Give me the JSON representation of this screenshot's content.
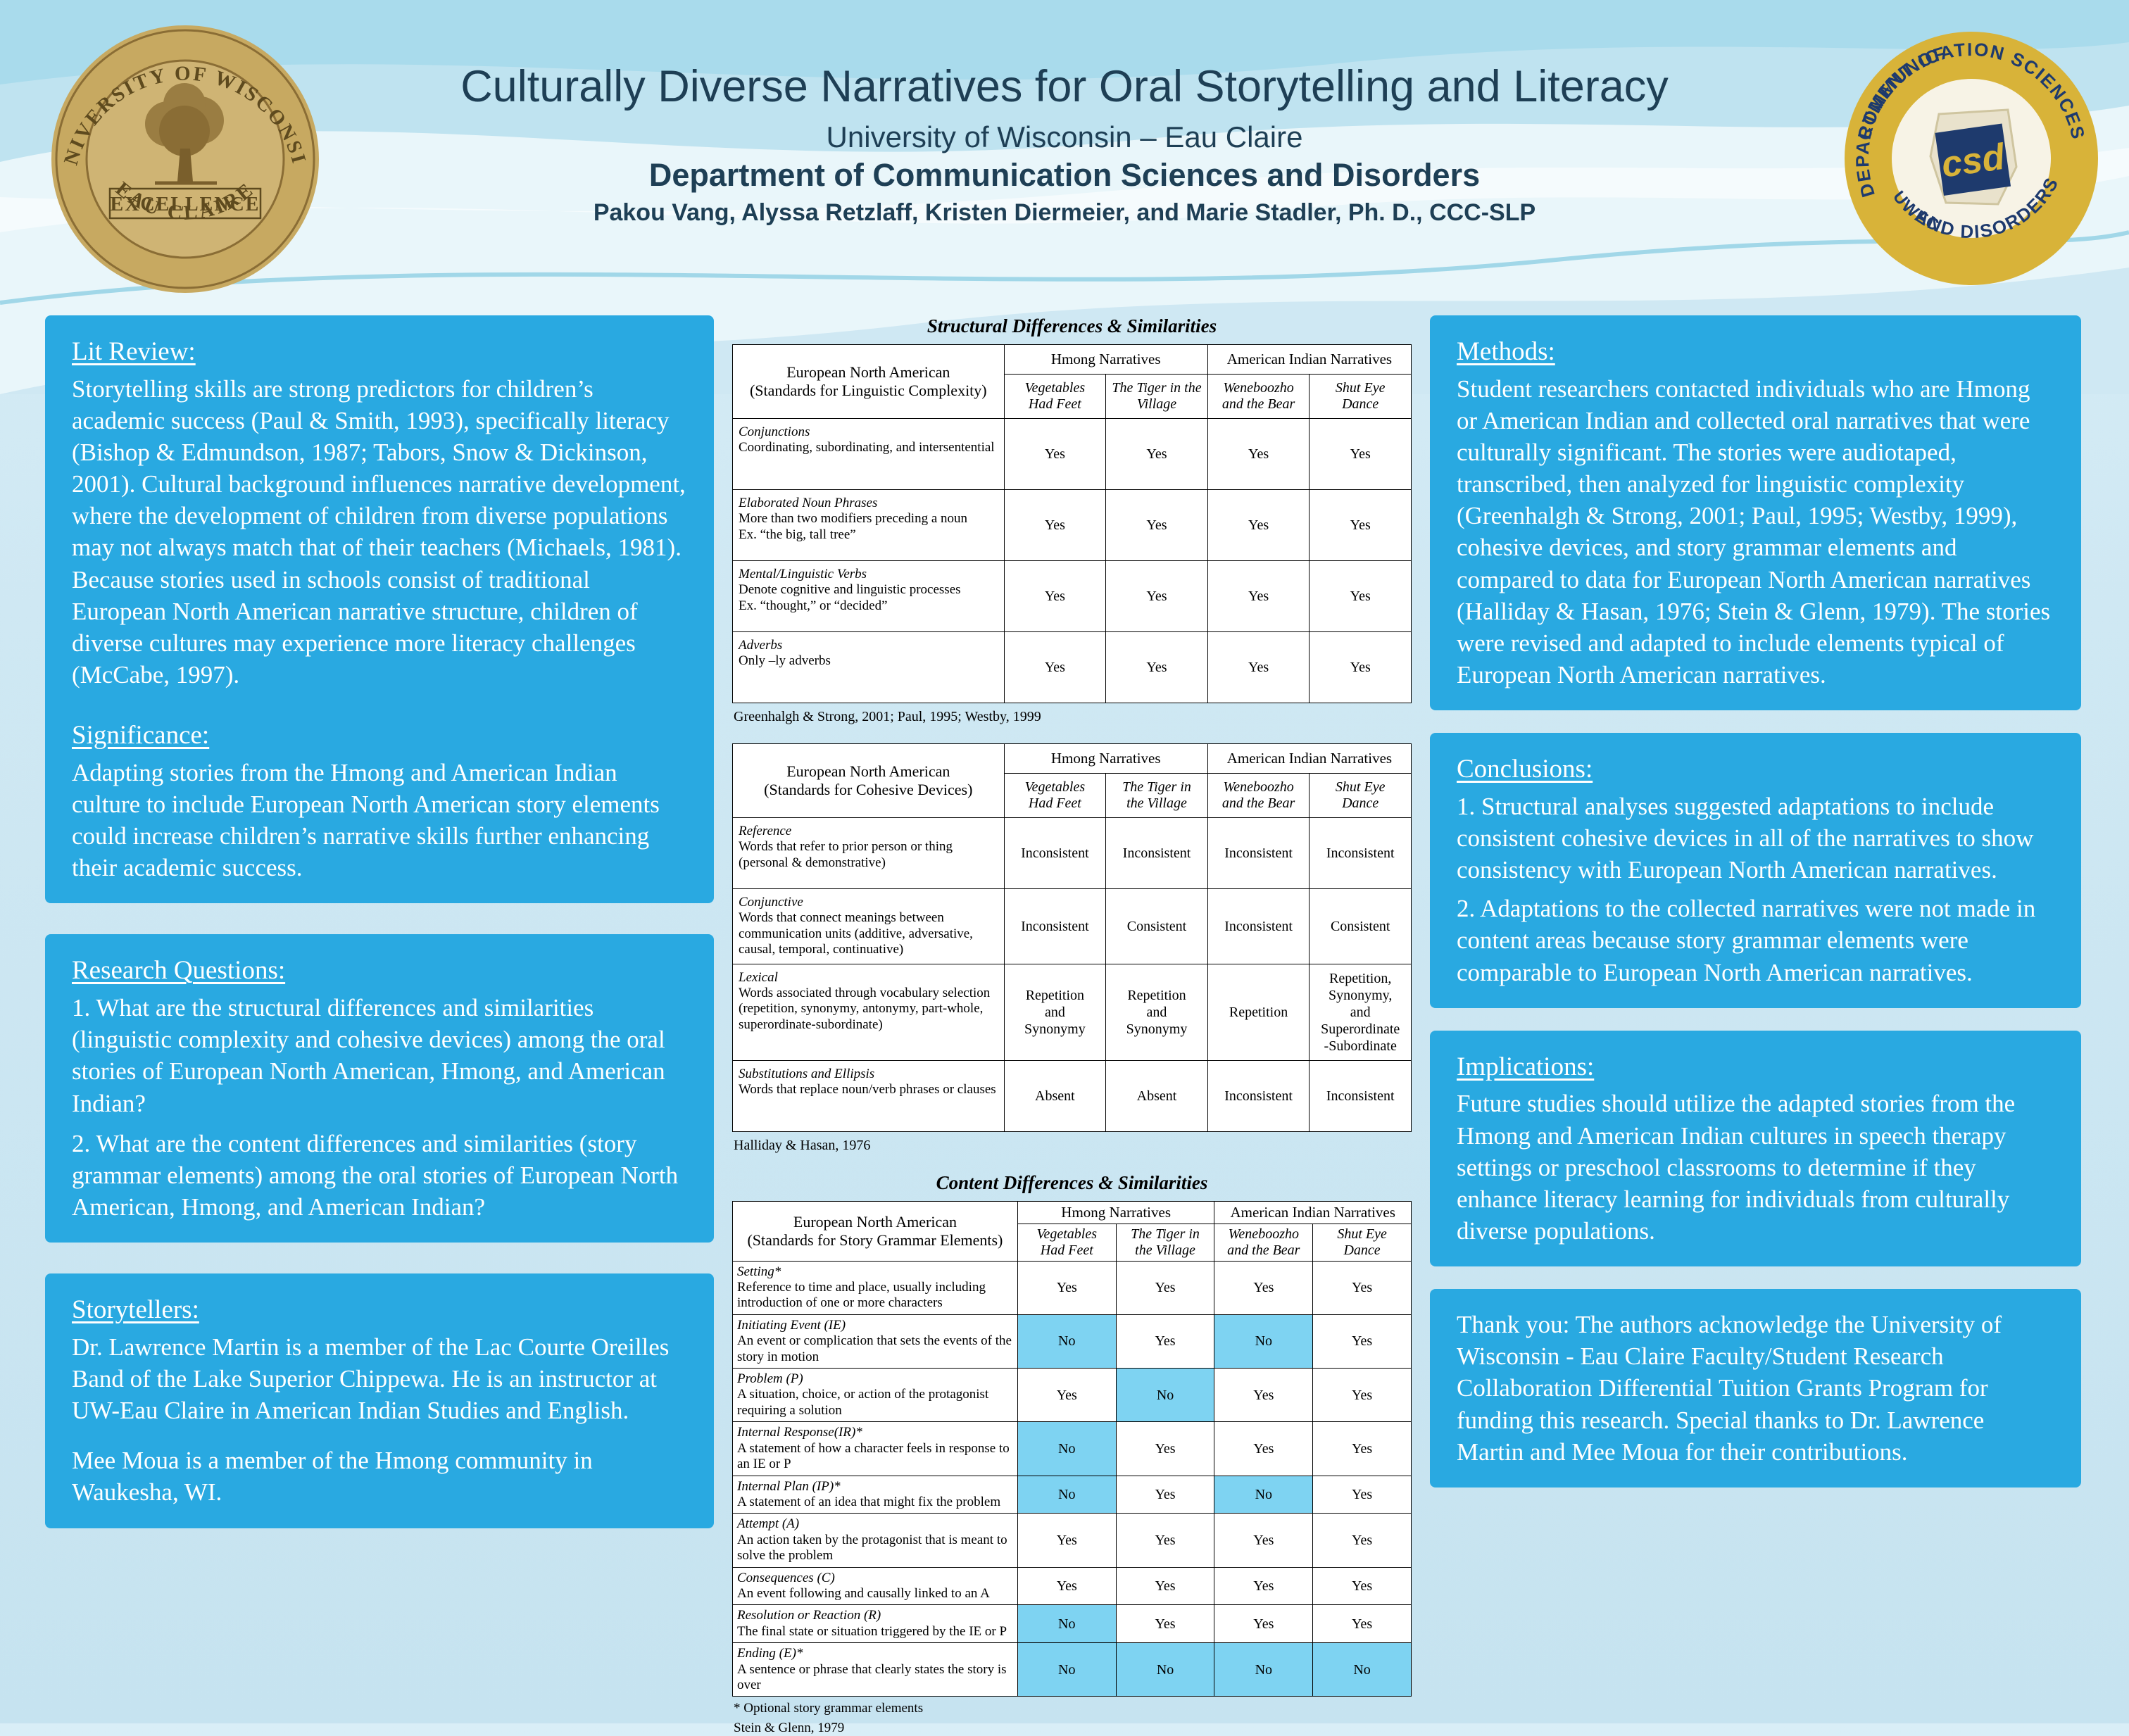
{
  "header": {
    "title": "Culturally Diverse Narratives for Oral Storytelling and Literacy",
    "subtitle1": "University of Wisconsin – Eau Claire",
    "subtitle2": "Department of Communication Sciences and Disorders",
    "authors": "Pakou Vang, Alyssa Retzlaff, Kristen Diermeier, and Marie Stadler, Ph. D., CCC-SLP",
    "seal": {
      "arc_top": "UNIVERSITY OF WISCONSIN",
      "banner": "EXCELLENCE",
      "arc_bottom": "EAU CLAIRE"
    },
    "logo": {
      "arc_top": "COMMUNICATION SCIENCES",
      "arc_left": "DEPARTMENT OF",
      "arc_bottom": "AND DISORDERS",
      "arc_bottom2": "UWEC",
      "center": "csd"
    }
  },
  "left": {
    "lit_review": {
      "heading": "Lit Review:",
      "body": "Storytelling skills are strong predictors for children’s academic success (Paul & Smith, 1993), specifically literacy (Bishop & Edmundson, 1987; Tabors, Snow & Dickinson, 2001). Cultural background influences narrative development, where the development of children from diverse populations may not always match that of their teachers (Michaels, 1981). Because stories used in schools consist of traditional European North American narrative structure, children of diverse cultures may experience more literacy challenges (McCabe, 1997)."
    },
    "significance": {
      "heading": "Significance:",
      "body": "Adapting stories from the Hmong and American Indian culture to include European North American story elements could increase children’s narrative skills further enhancing their academic success."
    },
    "research_questions": {
      "heading": "Research Questions:",
      "items": [
        "1. What are the structural differences and similarities (linguistic complexity and cohesive devices) among the oral stories of European North American, Hmong, and American Indian?",
        "2. What are the content differences and similarities (story grammar elements) among the oral stories of European North American, Hmong, and American Indian?"
      ]
    },
    "storytellers": {
      "heading": "Storytellers:",
      "paragraphs": [
        "Dr. Lawrence Martin is a member of the Lac Courte Oreilles Band of the Lake Superior Chippewa. He is an instructor at UW-Eau Claire in American Indian Studies and English.",
        "Mee Moua is a member of the Hmong community in Waukesha, WI."
      ]
    }
  },
  "middle": {
    "structural_title": "Structural Differences & Similarities",
    "content_title": "Content Differences & Similarities",
    "tables": {
      "t1": {
        "col_header": "European North American\n(Standards for Linguistic Complexity)",
        "groups": [
          "Hmong Narratives",
          "American Indian Narratives"
        ],
        "stories": [
          "Vegetables\nHad Feet",
          "The Tiger in the\nVillage",
          "Weneboozho\nand the Bear",
          "Shut Eye\nDance"
        ],
        "rows": [
          {
            "term": "Conjunctions",
            "desc": "Coordinating, subordinating, and intersentential",
            "values": [
              "Yes",
              "Yes",
              "Yes",
              "Yes"
            ]
          },
          {
            "term": "Elaborated Noun Phrases",
            "desc": "More than two modifiers preceding a noun\nEx. “the big, tall tree”",
            "values": [
              "Yes",
              "Yes",
              "Yes",
              "Yes"
            ]
          },
          {
            "term": "Mental/Linguistic Verbs",
            "desc": "Denote cognitive and linguistic processes\nEx. “thought,” or “decided”",
            "values": [
              "Yes",
              "Yes",
              "Yes",
              "Yes"
            ]
          },
          {
            "term": "Adverbs",
            "desc": "Only –ly adverbs",
            "values": [
              "Yes",
              "Yes",
              "Yes",
              "Yes"
            ]
          }
        ],
        "source": "Greenhalgh & Strong, 2001; Paul, 1995; Westby, 1999"
      },
      "t2": {
        "col_header": "European North American\n(Standards for Cohesive Devices)",
        "groups": [
          "Hmong Narratives",
          "American Indian Narratives"
        ],
        "stories": [
          "Vegetables\nHad Feet",
          "The Tiger in\nthe Village",
          "Weneboozho\nand the Bear",
          "Shut Eye\nDance"
        ],
        "rows": [
          {
            "term": "Reference",
            "desc": "Words that refer to prior person or thing (personal & demonstrative)",
            "values": [
              "Inconsistent",
              "Inconsistent",
              "Inconsistent",
              "Inconsistent"
            ]
          },
          {
            "term": "Conjunctive",
            "desc": "Words that connect meanings between communication units (additive, adversative, causal, temporal, continuative)",
            "values": [
              "Inconsistent",
              "Consistent",
              "Inconsistent",
              "Consistent"
            ]
          },
          {
            "term": "Lexical",
            "desc": "Words associated through vocabulary selection (repetition, synonymy, antonymy, part-whole, superordinate-subordinate)",
            "values": [
              "Repetition\nand\nSynonymy",
              "Repetition\nand\nSynonymy",
              "Repetition",
              "Repetition,\nSynonymy,\nand\nSuperordinate\n-Subordinate"
            ]
          },
          {
            "term": "Substitutions and Ellipsis",
            "desc": "Words that replace noun/verb phrases or clauses",
            "values": [
              "Absent",
              "Absent",
              "Inconsistent",
              "Inconsistent"
            ]
          }
        ],
        "source": "Halliday & Hasan, 1976"
      },
      "t3": {
        "col_header": "European North American\n(Standards for Story Grammar Elements)",
        "groups": [
          "Hmong Narratives",
          "American Indian Narratives"
        ],
        "stories": [
          "Vegetables\nHad Feet",
          "The Tiger in\nthe Village",
          "Weneboozho\nand the Bear",
          "Shut Eye\nDance"
        ],
        "rows": [
          {
            "term": "Setting*",
            "desc": "Reference to time and place, usually including introduction of one or more characters",
            "values": [
              "Yes",
              "Yes",
              "Yes",
              "Yes"
            ]
          },
          {
            "term": "Initiating Event (IE)",
            "desc": "An event or complication that sets the events of the story in motion",
            "values": [
              "No",
              "Yes",
              "No",
              "Yes"
            ],
            "highlights": [
              true,
              false,
              true,
              false
            ]
          },
          {
            "term": "Problem (P)",
            "desc": "A situation, choice, or action of the protagonist requiring a solution",
            "values": [
              "Yes",
              "No",
              "Yes",
              "Yes"
            ],
            "highlights": [
              false,
              true,
              false,
              false
            ]
          },
          {
            "term": "Internal Response(IR)*",
            "desc": "A statement of how a character feels in response to an IE or P",
            "values": [
              "No",
              "Yes",
              "Yes",
              "Yes"
            ],
            "highlights": [
              true,
              false,
              false,
              false
            ]
          },
          {
            "term": "Internal Plan (IP)*",
            "desc": "A statement of an idea that might fix the problem",
            "values": [
              "No",
              "Yes",
              "No",
              "Yes"
            ],
            "highlights": [
              true,
              false,
              true,
              false
            ]
          },
          {
            "term": "Attempt (A)",
            "desc": "An action taken by the protagonist that is meant to solve the problem",
            "values": [
              "Yes",
              "Yes",
              "Yes",
              "Yes"
            ]
          },
          {
            "term": "Consequences (C)",
            "desc": "An event following and causally linked to an A",
            "values": [
              "Yes",
              "Yes",
              "Yes",
              "Yes"
            ]
          },
          {
            "term": "Resolution or Reaction (R)",
            "desc": "The final state or situation triggered by the IE or P",
            "values": [
              "No",
              "Yes",
              "Yes",
              "Yes"
            ],
            "highlights": [
              true,
              false,
              false,
              false
            ]
          },
          {
            "term": "Ending (E)*",
            "desc": "A sentence or phrase that clearly states the story is over",
            "values": [
              "No",
              "No",
              "No",
              "No"
            ],
            "highlights": [
              true,
              true,
              true,
              true
            ]
          }
        ],
        "footnote": "* Optional story grammar elements",
        "source": "Stein & Glenn, 1979"
      }
    }
  },
  "right": {
    "methods": {
      "heading": "Methods:",
      "body": "Student researchers contacted individuals who are Hmong or American Indian and collected oral narratives that were culturally significant. The stories were audiotaped, transcribed, then analyzed for linguistic complexity (Greenhalgh & Strong, 2001; Paul, 1995; Westby, 1999), cohesive devices, and story grammar elements and compared to data for European North American narratives (Halliday & Hasan, 1976; Stein & Glenn, 1979). The stories were revised and adapted to include elements typical of European North American narratives."
    },
    "conclusions": {
      "heading": "Conclusions:",
      "items": [
        "1. Structural analyses suggested adaptations to include consistent cohesive devices in all of the narratives to show consistency with European North American narratives.",
        "2. Adaptations to the collected narratives were not made in content areas because story grammar elements were comparable to European North American narratives."
      ]
    },
    "implications": {
      "heading": "Implications:",
      "body": "Future studies should utilize the adapted stories from the Hmong and American Indian cultures in speech therapy settings or preschool classrooms to determine if they enhance literacy learning for individuals from culturally diverse populations."
    },
    "thanks": {
      "body": "Thank you: The authors acknowledge the University of Wisconsin - Eau Claire Faculty/Student Research Collaboration Differential Tuition Grants Program for funding this research. Special thanks to Dr. Lawrence Martin and Mee Moua for their contributions."
    }
  },
  "colors": {
    "box_blue": "#29a9e1",
    "cell_highlight": "#7ed3f2",
    "title_text": "#1e3f55",
    "seal_gold": "#c7a961",
    "logo_gold": "#d8b339",
    "logo_navy": "#1e3a6d"
  }
}
